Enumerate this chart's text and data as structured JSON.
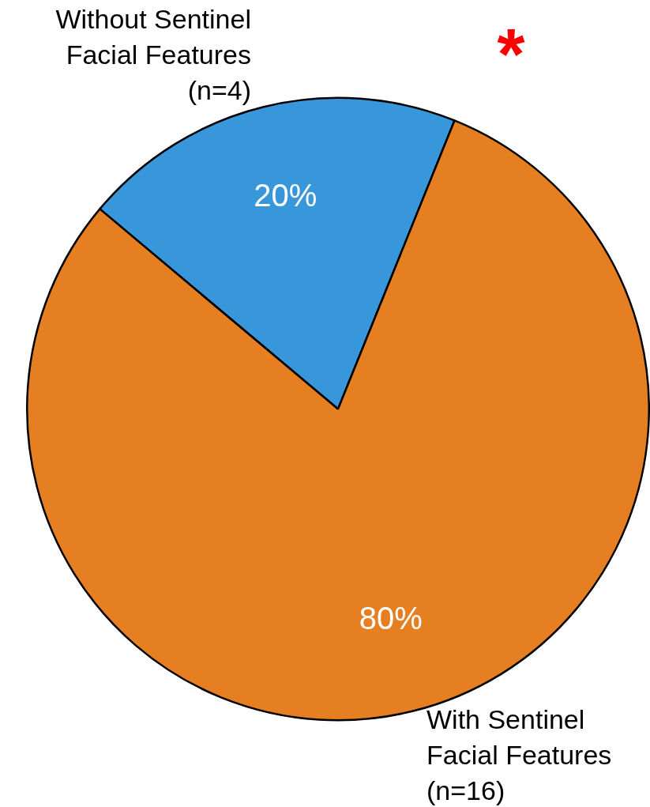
{
  "chart_data": {
    "type": "pie",
    "categories": [
      "Without Sentinel Facial Features (n=4)",
      "With Sentinel Facial Features (n=16)"
    ],
    "values": [
      20,
      80
    ],
    "colors": [
      "#3897db",
      "#e57f22"
    ],
    "value_labels": [
      "20%",
      "80%"
    ],
    "annotations": [
      "*"
    ],
    "legend": false
  }
}
